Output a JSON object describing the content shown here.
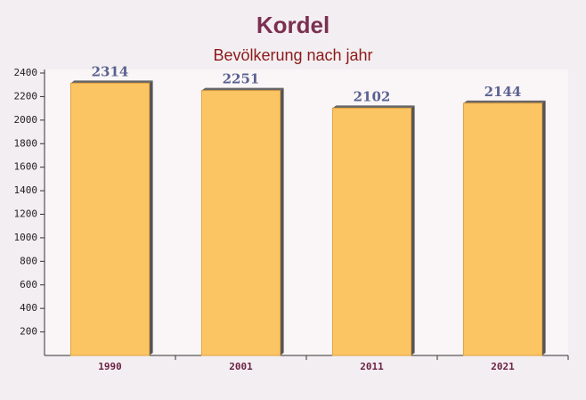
{
  "chart_data": {
    "type": "bar",
    "title": "Kordel",
    "subtitle": "Bevölkerung nach jahr",
    "categories": [
      "1990",
      "2001",
      "2011",
      "2021"
    ],
    "values": [
      2314,
      2251,
      2102,
      2144
    ],
    "color": "#fcc563",
    "ylim": [
      0,
      2400
    ],
    "yticks": [
      200,
      400,
      600,
      800,
      1000,
      1200,
      1400,
      1600,
      1800,
      2000,
      2200,
      2400
    ],
    "grid": false
  }
}
